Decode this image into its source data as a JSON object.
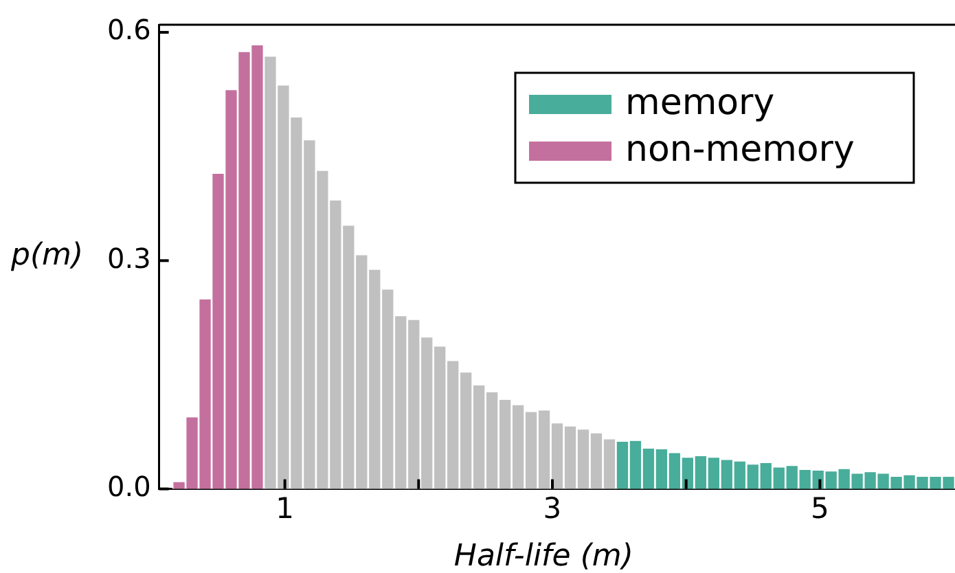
{
  "chart_data": {
    "type": "histogram",
    "xlabel": "Half-life (m)",
    "ylabel": "p(m)",
    "bins": [
      0.16,
      0.2575,
      0.355,
      0.4525,
      0.55,
      0.6475,
      0.745,
      0.8425,
      0.94,
      1.0375,
      1.135,
      1.2325,
      1.33,
      1.4275,
      1.525,
      1.6225,
      1.72,
      1.8175,
      1.915,
      2.0125,
      2.11,
      2.2075,
      2.305,
      2.4025,
      2.5,
      2.5975,
      2.695,
      2.7925,
      2.89,
      2.9875,
      3.085,
      3.1825,
      3.28,
      3.3775,
      3.475,
      3.5725,
      3.67,
      3.7675,
      3.865,
      3.9625,
      4.06,
      4.1575,
      4.255,
      4.3525,
      4.45,
      4.5475,
      4.645,
      4.7425,
      4.84,
      4.9375,
      5.035,
      5.1325,
      5.23,
      5.3275,
      5.425,
      5.5225,
      5.62,
      5.7175,
      5.815,
      5.9125,
      6.01
    ],
    "series": [
      {
        "name": "non-memory",
        "color": "#c4709e",
        "values": [
          0.009,
          0.094,
          0.249,
          0.414,
          0.524,
          0.574,
          0.583,
          null,
          null,
          null,
          null,
          null,
          null,
          null,
          null,
          null,
          null,
          null,
          null,
          null,
          null,
          null,
          null,
          null,
          null,
          null,
          null,
          null,
          null,
          null,
          null,
          null,
          null,
          null,
          null,
          null,
          null,
          null,
          null,
          null,
          null,
          null,
          null,
          null,
          null,
          null,
          null,
          null,
          null,
          null,
          null,
          null,
          null,
          null,
          null,
          null,
          null,
          null,
          null,
          null
        ]
      },
      {
        "color": "#c0c0c0",
        "values": [
          null,
          null,
          null,
          null,
          null,
          null,
          null,
          0.568,
          0.53,
          0.488,
          0.458,
          0.418,
          0.379,
          0.346,
          0.307,
          0.288,
          0.262,
          0.227,
          0.222,
          0.199,
          0.187,
          0.168,
          0.153,
          0.136,
          0.127,
          0.117,
          0.11,
          0.101,
          0.103,
          0.086,
          0.082,
          0.078,
          0.073,
          0.065,
          null,
          null,
          null,
          null,
          null,
          null,
          null,
          null,
          null,
          null,
          null,
          null,
          null,
          null,
          null,
          null,
          null,
          null,
          null,
          null,
          null,
          null,
          null,
          null,
          null,
          null
        ]
      },
      {
        "name": "memory",
        "color": "#48ad9a",
        "values": [
          null,
          null,
          null,
          null,
          null,
          null,
          null,
          null,
          null,
          null,
          null,
          null,
          null,
          null,
          null,
          null,
          null,
          null,
          null,
          null,
          null,
          null,
          null,
          null,
          null,
          null,
          null,
          null,
          null,
          null,
          null,
          null,
          null,
          null,
          0.062,
          0.063,
          0.053,
          0.052,
          0.047,
          0.041,
          0.043,
          0.041,
          0.038,
          0.036,
          0.032,
          0.034,
          0.028,
          0.03,
          0.025,
          0.024,
          0.023,
          0.026,
          0.02,
          0.022,
          0.02,
          0.016,
          0.018,
          0.016,
          0.016,
          0.016
        ]
      }
    ],
    "xlim": [
      0.06,
      6.01
    ],
    "xticks": [
      1,
      {
        "value": 2,
        "label": null
      },
      3,
      {
        "value": 4,
        "label": null
      },
      5
    ],
    "ylim": [
      0,
      0.61
    ],
    "yticks": [
      {
        "value": 0,
        "label": "0.0"
      },
      0.3,
      0.6
    ],
    "legend": "top right"
  }
}
